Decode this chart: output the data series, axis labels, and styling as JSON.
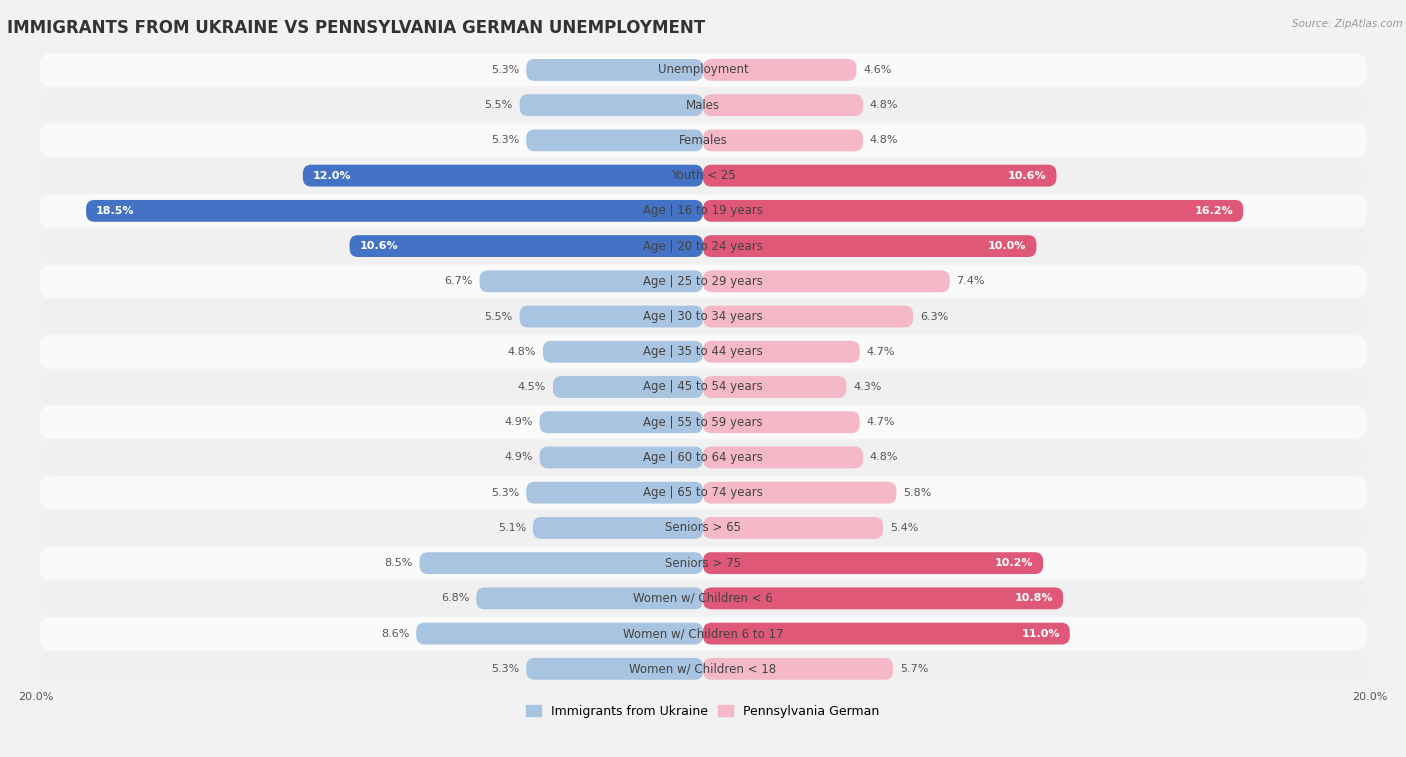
{
  "title": "IMMIGRANTS FROM UKRAINE VS PENNSYLVANIA GERMAN UNEMPLOYMENT",
  "source": "Source: ZipAtlas.com",
  "categories": [
    "Unemployment",
    "Males",
    "Females",
    "Youth < 25",
    "Age | 16 to 19 years",
    "Age | 20 to 24 years",
    "Age | 25 to 29 years",
    "Age | 30 to 34 years",
    "Age | 35 to 44 years",
    "Age | 45 to 54 years",
    "Age | 55 to 59 years",
    "Age | 60 to 64 years",
    "Age | 65 to 74 years",
    "Seniors > 65",
    "Seniors > 75",
    "Women w/ Children < 6",
    "Women w/ Children 6 to 17",
    "Women w/ Children < 18"
  ],
  "ukraine_values": [
    5.3,
    5.5,
    5.3,
    12.0,
    18.5,
    10.6,
    6.7,
    5.5,
    4.8,
    4.5,
    4.9,
    4.9,
    5.3,
    5.1,
    8.5,
    6.8,
    8.6,
    5.3
  ],
  "pagerman_values": [
    4.6,
    4.8,
    4.8,
    10.6,
    16.2,
    10.0,
    7.4,
    6.3,
    4.7,
    4.3,
    4.7,
    4.8,
    5.8,
    5.4,
    10.2,
    10.8,
    11.0,
    5.7
  ],
  "ukraine_color_light": "#a8c4e0",
  "ukraine_color_dark": "#4472c4",
  "pagerman_color_light": "#f4b8c8",
  "pagerman_color_dark": "#e05878",
  "row_color_odd": "#f0f0f0",
  "row_color_even": "#fafafa",
  "background_color": "#f2f2f2",
  "max_value": 20.0,
  "legend_ukraine": "Immigrants from Ukraine",
  "legend_pagerman": "Pennsylvania German",
  "title_fontsize": 12,
  "label_fontsize": 8.5,
  "value_fontsize": 8
}
